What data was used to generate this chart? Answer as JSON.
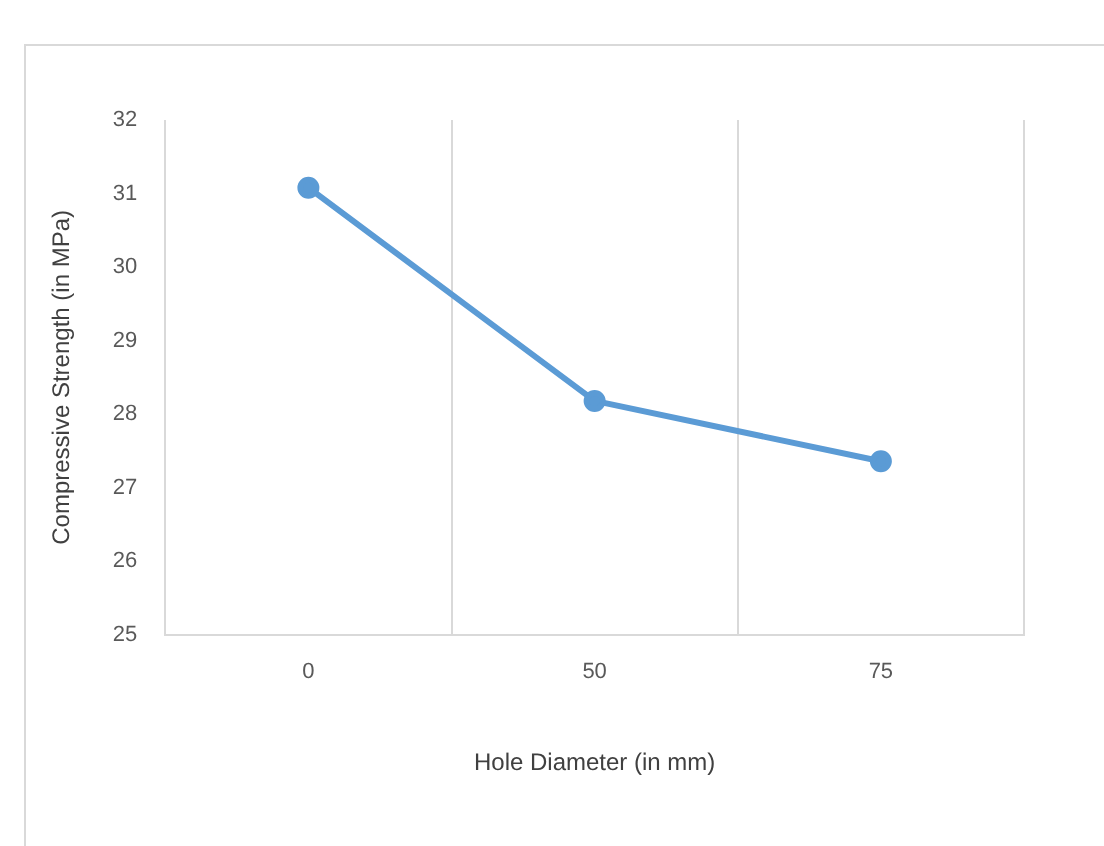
{
  "chart_data": {
    "type": "line",
    "xlabel": "Hole Diameter (in mm)",
    "ylabel": "Compressive Strength (in MPa)",
    "categories": [
      "0",
      "50",
      "75"
    ],
    "series": [
      {
        "color": "#5b9bd5",
        "values": [
          31.08,
          28.18,
          27.36
        ]
      }
    ],
    "ylim": [
      25,
      32
    ],
    "yticks": [
      25,
      26,
      27,
      28,
      29,
      30,
      31,
      32
    ],
    "grid": "x",
    "marker": "circle",
    "line_style": "solid"
  }
}
